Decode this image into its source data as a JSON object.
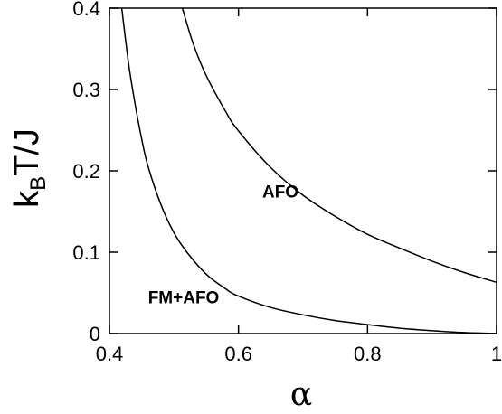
{
  "chart_data": {
    "type": "line",
    "xlabel": "α",
    "ylabel_main": "k",
    "ylabel_sub": "B",
    "ylabel_rest": "T/J",
    "xlim": [
      0.4,
      1.0
    ],
    "ylim": [
      0.0,
      0.4
    ],
    "x_ticks": [
      0.4,
      0.6,
      0.8,
      1.0
    ],
    "x_tick_labels": [
      "0.4",
      "0.6",
      "0.8",
      "1"
    ],
    "y_ticks": [
      0.0,
      0.1,
      0.2,
      0.3,
      0.4
    ],
    "y_tick_labels": [
      "0",
      "0.1",
      "0.2",
      "0.3",
      "0.4"
    ],
    "grid": false,
    "annotations": [
      {
        "text": "AFO",
        "x": 0.665,
        "y": 0.175
      },
      {
        "text": "FM+AFO",
        "x": 0.515,
        "y": 0.045
      }
    ],
    "series": [
      {
        "x": [
          0.419,
          0.43,
          0.44,
          0.45,
          0.46,
          0.48,
          0.5,
          0.52,
          0.55,
          0.58,
          0.6,
          0.65,
          0.7,
          0.75,
          0.8,
          0.85,
          0.9,
          0.95,
          1.0
        ],
        "y": [
          0.4,
          0.33,
          0.281,
          0.239,
          0.205,
          0.158,
          0.124,
          0.1,
          0.073,
          0.055,
          0.046,
          0.032,
          0.023,
          0.016,
          0.011,
          0.0066,
          0.0036,
          0.0012,
          0.0
        ]
      },
      {
        "x": [
          0.513,
          0.53,
          0.55,
          0.58,
          0.6,
          0.65,
          0.7,
          0.75,
          0.8,
          0.85,
          0.9,
          0.95,
          1.0
        ],
        "y": [
          0.4,
          0.356,
          0.317,
          0.273,
          0.249,
          0.204,
          0.17,
          0.144,
          0.122,
          0.105,
          0.089,
          0.075,
          0.063
        ]
      }
    ]
  }
}
